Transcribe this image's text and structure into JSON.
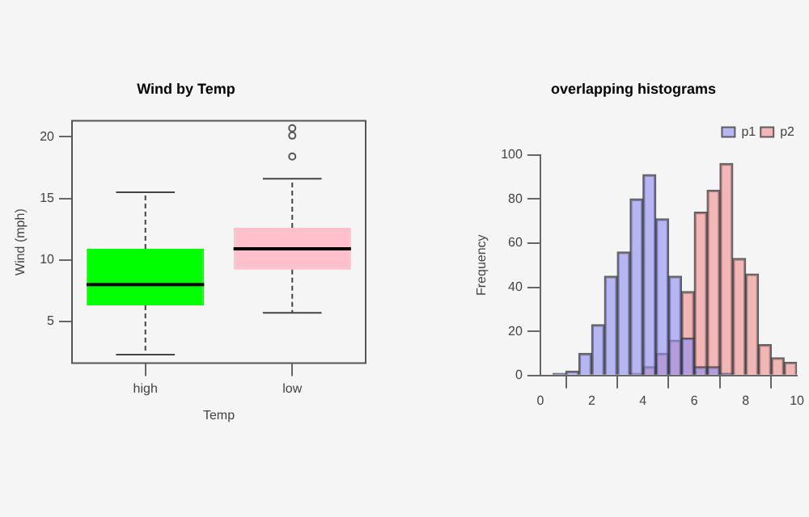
{
  "chart_data": [
    {
      "type": "box",
      "title": "Wind by Temp",
      "xlabel": "Temp",
      "ylabel": "Wind (mph)",
      "categories": [
        "high",
        "low"
      ],
      "colors": [
        "#00ff00",
        "#ffc0cb"
      ],
      "boxes": [
        {
          "low": 2.3,
          "q1": 6.3,
          "median": 8.0,
          "q3": 10.9,
          "high": 15.5
        },
        {
          "low": 5.7,
          "q1": 9.2,
          "median": 10.9,
          "q3": 12.6,
          "high": 16.6,
          "outliers": [
            18.4,
            20.1,
            20.7
          ]
        }
      ],
      "ylim": [
        1.6,
        21.3
      ],
      "yticks": [
        5,
        10,
        15,
        20
      ],
      "grid": false,
      "legend": false
    },
    {
      "type": "histogram",
      "title": "overlapping histograms",
      "ylabel": "Frequency",
      "bins": [
        0.5,
        1,
        1.5,
        2,
        2.5,
        3,
        3.5,
        4,
        4.5,
        5,
        5.5,
        6,
        6.5,
        7,
        7.5,
        8,
        8.5,
        9,
        9.5,
        10
      ],
      "series": [
        {
          "name": "p1",
          "color": "#8c8cf0",
          "values": [
            1,
            2,
            10,
            23,
            45,
            56,
            80,
            91,
            71,
            45,
            17,
            4,
            4,
            1,
            0,
            0,
            0,
            0,
            0
          ]
        },
        {
          "name": "p2",
          "color": "#f08c8c",
          "values": [
            0,
            0,
            0,
            0,
            0,
            0,
            1,
            4,
            10,
            16,
            38,
            74,
            84,
            96,
            53,
            46,
            14,
            8,
            6
          ]
        }
      ],
      "xlim": [
        0,
        10
      ],
      "xticks": [
        0,
        2,
        4,
        6,
        8,
        10
      ],
      "ylim": [
        0,
        100
      ],
      "yticks": [
        0,
        20,
        40,
        60,
        80,
        100
      ],
      "grid": false,
      "legend": "top right"
    }
  ]
}
